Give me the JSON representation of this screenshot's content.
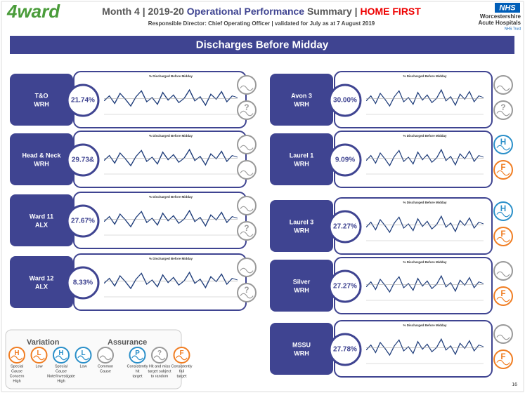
{
  "header": {
    "logo": "4ward",
    "title": [
      {
        "text": "Month 4 | 2019-20 ",
        "style": "plain"
      },
      {
        "text": "Operational Performance",
        "style": "blue"
      },
      {
        "text": " Summary | ",
        "style": "plain"
      },
      {
        "text": "HOME FIRST",
        "style": "red"
      }
    ],
    "subtitle": "Responsible Director: Chief Operating Officer | validated for July as at 7 August 2019",
    "nhs": "NHS",
    "trust": [
      "Worcestershire",
      "Acute Hospitals"
    ],
    "trust_suffix": "NHS Trust"
  },
  "banner": "Discharges Before Midday",
  "wards": [
    {
      "column": "left",
      "name": [
        "T&O",
        "WRH"
      ],
      "value": "21.74%",
      "chart_title": "% Discharged Before Midday",
      "icons": [
        {
          "kind": "common"
        },
        {
          "kind": "unknown",
          "label": "?"
        }
      ]
    },
    {
      "column": "left",
      "name": [
        "Head & Neck",
        "WRH"
      ],
      "value": "29.73&",
      "chart_title": "% Discharged Before Midday",
      "icons": [
        {
          "kind": "common"
        },
        {
          "kind": "common"
        }
      ]
    },
    {
      "column": "left",
      "name": [
        "Ward 11",
        "ALX"
      ],
      "value": "27.67%",
      "chart_title": "% Discharged Before Midday",
      "icons": [
        {
          "kind": "common"
        },
        {
          "kind": "unknown",
          "label": "?"
        }
      ]
    },
    {
      "column": "left",
      "name": [
        "Ward 12",
        "ALX"
      ],
      "value": "8.33%",
      "chart_title": "% Discharged Before Midday",
      "icons": [
        {
          "kind": "common"
        },
        {
          "kind": "unknown",
          "label": "?"
        }
      ]
    },
    {
      "column": "right",
      "name": [
        "Avon 3",
        "WRH"
      ],
      "value": "30.00%",
      "chart_title": "% Discharged Before Midday",
      "icons": [
        {
          "kind": "common"
        },
        {
          "kind": "unknown",
          "label": "?"
        }
      ]
    },
    {
      "column": "right",
      "name": [
        "Laurel 1",
        "WRH"
      ],
      "value": "9.09%",
      "chart_title": "% Discharged Before Midday",
      "icons": [
        {
          "kind": "high",
          "label": "H"
        },
        {
          "kind": "fail",
          "label": "F"
        }
      ]
    },
    {
      "column": "right",
      "name": [
        "Laurel 3",
        "WRH"
      ],
      "value": "27.27%",
      "chart_title": "% Discharged Before Midday",
      "icons": [
        {
          "kind": "high",
          "label": "H"
        },
        {
          "kind": "fail",
          "label": "F"
        }
      ]
    },
    {
      "column": "right",
      "name": [
        "Silver",
        "WRH"
      ],
      "value": "27.27%",
      "chart_title": "% Discharged Before Midday",
      "icons": [
        {
          "kind": "common"
        },
        {
          "kind": "fail",
          "label": "F"
        }
      ]
    },
    {
      "column": "right",
      "name": [
        "MSSU",
        "WRH"
      ],
      "value": "27.78%",
      "chart_title": "% Discharged Before Midday",
      "icons": [
        {
          "kind": "common"
        },
        {
          "kind": "fail",
          "label": "F"
        }
      ]
    }
  ],
  "legend": {
    "variation_title": "Variation",
    "assurance_title": "Assurance",
    "items": [
      {
        "kind": "concern",
        "label": "H",
        "caption": [
          "Special",
          "Cause",
          "Concern",
          "High"
        ]
      },
      {
        "kind": "concern",
        "label": "L",
        "caption": [
          "Low"
        ]
      },
      {
        "kind": "high",
        "label": "H",
        "caption": [
          "Special",
          "Cause",
          "Note/Investigate",
          "High"
        ]
      },
      {
        "kind": "high",
        "label": "L",
        "caption": [
          "Low"
        ]
      },
      {
        "kind": "common",
        "caption": [
          "Common",
          "Cause"
        ]
      },
      {
        "kind": "pass",
        "label": "P",
        "caption": [
          "Consistently",
          "hit",
          "target"
        ]
      },
      {
        "kind": "unknown",
        "label": "?",
        "caption": [
          "Hit and miss",
          "target subject",
          "to random"
        ]
      },
      {
        "kind": "fail",
        "label": "F",
        "caption": [
          "Consistently",
          "fail",
          "target"
        ]
      }
    ]
  },
  "page_number": "16"
}
